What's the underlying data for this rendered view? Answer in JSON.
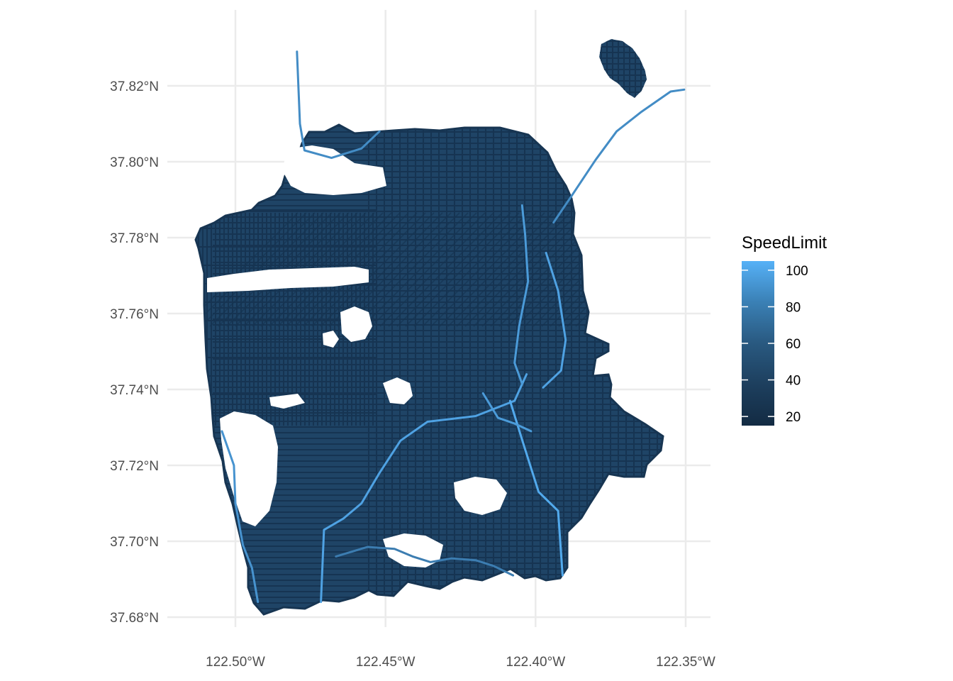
{
  "chart_data": {
    "type": "map",
    "xlim": [
      -122.515,
      -122.35
    ],
    "ylim": [
      37.68,
      37.83
    ],
    "x_ticks": [
      {
        "value": -122.5,
        "label": "122.50°W"
      },
      {
        "value": -122.45,
        "label": "122.45°W"
      },
      {
        "value": -122.4,
        "label": "122.40°W"
      },
      {
        "value": -122.35,
        "label": "122.35°W"
      }
    ],
    "y_ticks": [
      {
        "value": 37.68,
        "label": "37.68°N"
      },
      {
        "value": 37.7,
        "label": "37.70°N"
      },
      {
        "value": 37.72,
        "label": "37.72°N"
      },
      {
        "value": 37.74,
        "label": "37.74°N"
      },
      {
        "value": 37.76,
        "label": "37.76°N"
      },
      {
        "value": 37.78,
        "label": "37.78°N"
      },
      {
        "value": 37.8,
        "label": "37.80°N"
      },
      {
        "value": 37.82,
        "label": "37.82°N"
      }
    ],
    "grid": true,
    "legend": {
      "title": "SpeedLimit",
      "position": "right",
      "low_color": "#132B43",
      "high_color": "#56B1F7",
      "min": 15,
      "max": 105,
      "breaks": [
        20,
        40,
        60,
        80,
        100
      ]
    },
    "freeways": [
      {
        "speed": 80,
        "points": [
          [
            -122.4795,
            37.829
          ],
          [
            -122.4785,
            37.81
          ],
          [
            -122.477,
            37.803
          ],
          [
            -122.468,
            37.801
          ],
          [
            -122.458,
            37.8035
          ],
          [
            -122.452,
            37.808
          ]
        ]
      },
      {
        "speed": 80,
        "points": [
          [
            -122.3505,
            37.819
          ],
          [
            -122.355,
            37.8185
          ],
          [
            -122.365,
            37.813
          ],
          [
            -122.373,
            37.808
          ],
          [
            -122.38,
            37.8005
          ],
          [
            -122.388,
            37.791
          ],
          [
            -122.394,
            37.784
          ]
        ]
      },
      {
        "speed": 95,
        "points": [
          [
            -122.403,
            37.744
          ],
          [
            -122.407,
            37.737
          ],
          [
            -122.42,
            37.733
          ],
          [
            -122.436,
            37.7315
          ],
          [
            -122.445,
            37.7265
          ],
          [
            -122.452,
            37.718
          ],
          [
            -122.458,
            37.71
          ],
          [
            -122.464,
            37.706
          ],
          [
            -122.4705,
            37.703
          ],
          [
            -122.4715,
            37.684
          ]
        ]
      },
      {
        "speed": 100,
        "points": [
          [
            -122.4085,
            37.737
          ],
          [
            -122.404,
            37.7255
          ],
          [
            -122.399,
            37.713
          ],
          [
            -122.3925,
            37.708
          ],
          [
            -122.391,
            37.691
          ]
        ]
      },
      {
        "speed": 90,
        "points": [
          [
            -122.4045,
            37.7885
          ],
          [
            -122.4035,
            37.781
          ],
          [
            -122.4025,
            37.7685
          ],
          [
            -122.4055,
            37.7565
          ],
          [
            -122.407,
            37.747
          ],
          [
            -122.4045,
            37.7415
          ]
        ]
      },
      {
        "speed": 95,
        "points": [
          [
            -122.3965,
            37.776
          ],
          [
            -122.3925,
            37.766
          ],
          [
            -122.39,
            37.753
          ],
          [
            -122.3915,
            37.745
          ],
          [
            -122.3975,
            37.7405
          ]
        ]
      },
      {
        "speed": 85,
        "points": [
          [
            -122.5045,
            37.729
          ],
          [
            -122.5005,
            37.72
          ],
          [
            -122.5,
            37.71
          ],
          [
            -122.4975,
            37.699
          ],
          [
            -122.4945,
            37.693
          ],
          [
            -122.4925,
            37.684
          ]
        ]
      },
      {
        "speed": 70,
        "points": [
          [
            -122.4665,
            37.696
          ],
          [
            -122.456,
            37.6985
          ],
          [
            -122.447,
            37.698
          ],
          [
            -122.441,
            37.696
          ],
          [
            -122.435,
            37.6945
          ],
          [
            -122.428,
            37.6955
          ],
          [
            -122.42,
            37.695
          ],
          [
            -122.414,
            37.6935
          ],
          [
            -122.4075,
            37.691
          ]
        ]
      },
      {
        "speed": 90,
        "points": [
          [
            -122.4175,
            37.739
          ],
          [
            -122.4125,
            37.7325
          ],
          [
            -122.407,
            37.731
          ],
          [
            -122.4015,
            37.729
          ]
        ]
      }
    ]
  }
}
